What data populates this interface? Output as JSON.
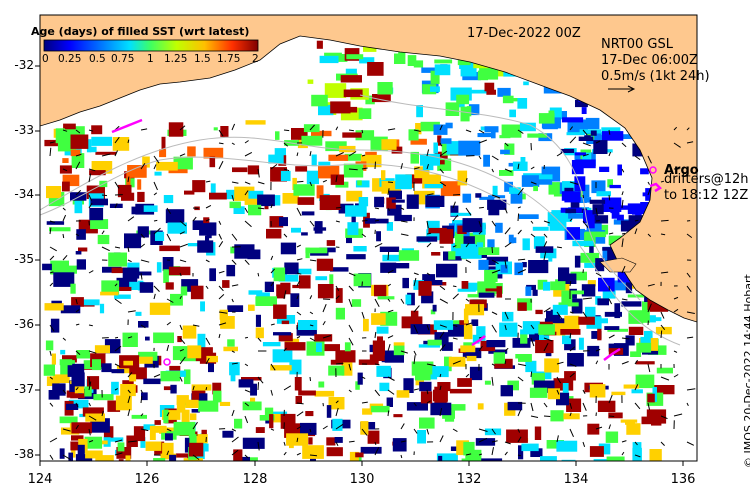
{
  "title": {
    "date": "17-Dec-2022 00Z",
    "product": "NRT00 GSL",
    "current_time": "17-Dec 06:00Z",
    "current_scale": "0.5m/s (1kt 24h)"
  },
  "colorbar": {
    "title": "Age (days) of filled SST (wrt latest)",
    "ticks": [
      "0",
      "0.25",
      "0.5",
      "0.75",
      "1",
      "1.25",
      "1.5",
      "1.75",
      "2"
    ],
    "colors": [
      "#00007f",
      "#0000ff",
      "#0080ff",
      "#00e0ff",
      "#40ff40",
      "#c0ff00",
      "#ffd000",
      "#ff6000",
      "#a00000"
    ]
  },
  "axes": {
    "x_ticks": [
      "124",
      "126",
      "128",
      "130",
      "132",
      "134",
      "136"
    ],
    "y_ticks": [
      "-32",
      "-33",
      "-34",
      "-35",
      "-36",
      "-37",
      "-38"
    ],
    "lon_range": [
      124,
      136.6
    ],
    "lat_range": [
      -38.05,
      -31.8
    ]
  },
  "legend": {
    "argo_label": "Argo",
    "drifters_line1": "drifters@12h",
    "drifters_line2": "to 18:12 12Z"
  },
  "credit": "© IMOS 20-Dec-2022 14:44 Hobart",
  "colors": {
    "land": "#fec88e",
    "missing": "#ffffff",
    "argo": "#ff00ff"
  }
}
